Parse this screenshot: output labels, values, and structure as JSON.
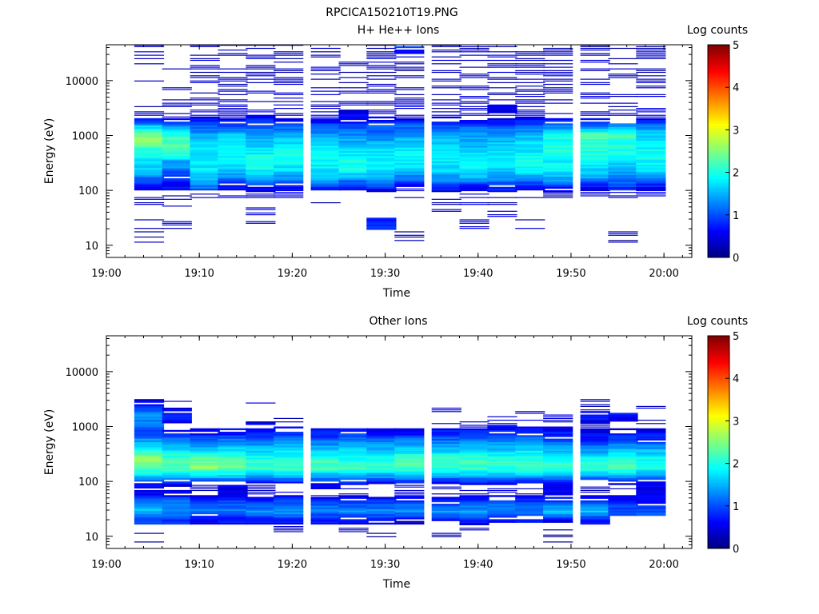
{
  "figure": {
    "title": "RPCICA150210T19.PNG"
  },
  "panels": [
    {
      "title": "H+ He++ Ions",
      "ylabel": "Energy (eV)",
      "xlabel": "Time",
      "colorbar_label": "Log counts"
    },
    {
      "title": "Other Ions",
      "ylabel": "Energy (eV)",
      "xlabel": "Time",
      "colorbar_label": "Log counts"
    }
  ],
  "chart_data": [
    {
      "type": "heatmap",
      "title": "H+ He++ Ions",
      "xlabel": "Time",
      "ylabel": "Energy (eV)",
      "x_ticks": [
        "19:00",
        "19:10",
        "19:20",
        "19:30",
        "19:40",
        "19:50",
        "20:00"
      ],
      "xlim": [
        "19:00",
        "20:03"
      ],
      "y_scale": "log",
      "y_ticks": [
        10,
        100,
        1000,
        10000
      ],
      "ylim": [
        6,
        45000
      ],
      "colorbar": {
        "label": "Log counts",
        "range": [
          0,
          5
        ],
        "ticks": [
          0,
          1,
          2,
          3,
          4,
          5
        ],
        "colormap": "jet"
      },
      "time_bins": [
        "19:03",
        "19:06",
        "19:09",
        "19:12",
        "19:15",
        "19:18",
        "19:22",
        "19:25",
        "19:28",
        "19:31",
        "19:35",
        "19:38",
        "19:41",
        "19:44",
        "19:47",
        "19:51",
        "19:54",
        "19:57"
      ],
      "profile": [
        {
          "energy": 13,
          "values": [
            0.2,
            0,
            0,
            0,
            0,
            0,
            0,
            0,
            0,
            0.2,
            0,
            0,
            0,
            0,
            0,
            0,
            0.2,
            0
          ]
        },
        {
          "energy": 25,
          "values": [
            0.4,
            0.4,
            0,
            0,
            0.4,
            0,
            0,
            0,
            0.8,
            0,
            0,
            0.4,
            0,
            0.4,
            0,
            0,
            0,
            0
          ]
        },
        {
          "energy": 38,
          "values": [
            0,
            0,
            0,
            0,
            0.4,
            0,
            0,
            0,
            0,
            0,
            0.3,
            0,
            0.4,
            0,
            0,
            0,
            0,
            0
          ]
        },
        {
          "energy": 55,
          "values": [
            0.4,
            0.3,
            0,
            0,
            0,
            0,
            0.3,
            0,
            0,
            0,
            0.3,
            0.4,
            0.3,
            0,
            0,
            0,
            0,
            0
          ]
        },
        {
          "energy": 80,
          "values": [
            0.3,
            0.3,
            0.3,
            0.4,
            0.3,
            0.4,
            0.3,
            0.4,
            0.3,
            0.4,
            0.3,
            0.4,
            0.3,
            0.4,
            0.3,
            0.4,
            0.3,
            0.4
          ]
        },
        {
          "energy": 110,
          "values": [
            0.6,
            0.6,
            1.2,
            0.6,
            0.8,
            0.6,
            0.9,
            0.6,
            0.8,
            0.5,
            0.8,
            0.6,
            0.9,
            0.6,
            0.8,
            0.6,
            0.9,
            0.6
          ]
        },
        {
          "energy": 160,
          "values": [
            1.2,
            0.8,
            1.5,
            1.2,
            1.4,
            1.3,
            1.5,
            1.4,
            1.5,
            1.2,
            1.4,
            1.5,
            1.3,
            1.4,
            1.5,
            1.4,
            1.2,
            1.3
          ]
        },
        {
          "energy": 230,
          "values": [
            1.6,
            1.2,
            1.8,
            1.6,
            1.9,
            1.7,
            1.8,
            1.9,
            1.8,
            1.6,
            1.7,
            1.8,
            1.6,
            1.9,
            1.8,
            1.7,
            1.5,
            1.8
          ]
        },
        {
          "energy": 330,
          "values": [
            1.7,
            1.5,
            1.9,
            1.8,
            2.0,
            1.9,
            1.9,
            2.0,
            1.9,
            1.8,
            1.8,
            1.9,
            1.8,
            2.0,
            1.9,
            1.9,
            1.8,
            1.9
          ]
        },
        {
          "energy": 480,
          "values": [
            2.0,
            2.2,
            1.8,
            2.0,
            1.8,
            1.9,
            1.9,
            1.8,
            1.8,
            1.9,
            1.8,
            1.7,
            1.8,
            1.8,
            2.0,
            2.0,
            2.0,
            1.9
          ]
        },
        {
          "energy": 700,
          "values": [
            2.4,
            2.2,
            1.7,
            1.9,
            1.6,
            1.7,
            1.6,
            1.5,
            1.5,
            1.6,
            1.6,
            1.5,
            1.6,
            1.7,
            2.0,
            2.1,
            2.0,
            1.8
          ]
        },
        {
          "energy": 1000,
          "values": [
            2.6,
            2.1,
            1.5,
            1.6,
            1.4,
            1.5,
            1.4,
            1.3,
            1.2,
            1.4,
            1.4,
            1.3,
            1.4,
            1.5,
            1.9,
            2.3,
            2.2,
            1.7
          ]
        },
        {
          "energy": 1450,
          "values": [
            1.6,
            1.3,
            1.0,
            1.0,
            1.0,
            1.0,
            1.0,
            0.9,
            1.0,
            1.1,
            1.0,
            1.1,
            1.0,
            1.1,
            1.2,
            1.2,
            1.4,
            1.2
          ]
        },
        {
          "energy": 2100,
          "values": [
            0.4,
            0.3,
            0.5,
            0.4,
            0.6,
            0.5,
            0.4,
            0.6,
            0.5,
            0.4,
            0.5,
            0.3,
            0.4,
            0.5,
            0.4,
            0.4,
            0.3,
            0.4
          ]
        },
        {
          "energy": 3000,
          "values": [
            0.3,
            0.3,
            0.4,
            0.4,
            0.4,
            0.4,
            0.4,
            0.5,
            0.3,
            0.5,
            0.4,
            0.4,
            0.6,
            0.4,
            0.4,
            0.3,
            0.4,
            0.4
          ]
        },
        {
          "energy": 4500,
          "values": [
            0,
            0.4,
            0.3,
            0.4,
            0.3,
            0.4,
            0.3,
            0.4,
            0.3,
            0.4,
            0.3,
            0.4,
            0.3,
            0.4,
            0.3,
            0.4,
            0.3,
            0.4
          ]
        },
        {
          "energy": 6500,
          "values": [
            0,
            0.3,
            0.4,
            0.3,
            0.4,
            0.3,
            0.4,
            0.3,
            0.4,
            0.3,
            0.4,
            0.3,
            0.4,
            0.3,
            0.4,
            0.3,
            0.4,
            0.3
          ]
        },
        {
          "energy": 9500,
          "values": [
            0.3,
            0.3,
            0.4,
            0.4,
            0.3,
            0.4,
            0.3,
            0.4,
            0.3,
            0.4,
            0.3,
            0.4,
            0.3,
            0.4,
            0.3,
            0.4,
            0.3,
            0.4
          ]
        },
        {
          "energy": 14000,
          "values": [
            0,
            0.3,
            0.3,
            0.4,
            0.3,
            0.3,
            0.4,
            0.3,
            0.4,
            0.3,
            0.4,
            0.3,
            0.4,
            0.3,
            0.4,
            0.3,
            0.4,
            0.3
          ]
        },
        {
          "energy": 20000,
          "values": [
            0.3,
            0,
            0.4,
            0.4,
            0.3,
            0.4,
            0.4,
            0.3,
            0.4,
            0.3,
            0.4,
            0.3,
            0.4,
            0.4,
            0.3,
            0.4,
            0.3,
            0.4
          ]
        },
        {
          "energy": 29000,
          "values": [
            0.3,
            0,
            0.3,
            0.3,
            0.4,
            0.3,
            0.3,
            0.4,
            0.3,
            0.4,
            0.3,
            0.3,
            0.4,
            0.3,
            0.4,
            0.3,
            0.4,
            0.3
          ]
        },
        {
          "energy": 40000,
          "values": [
            0.3,
            0,
            0.3,
            0.3,
            0.3,
            0.4,
            0.3,
            0.3,
            0.3,
            0.8,
            0.3,
            0.3,
            0.3,
            0.3,
            0.3,
            0.3,
            0.3,
            0.3
          ]
        }
      ]
    },
    {
      "type": "heatmap",
      "title": "Other Ions",
      "xlabel": "Time",
      "ylabel": "Energy (eV)",
      "x_ticks": [
        "19:00",
        "19:10",
        "19:20",
        "19:30",
        "19:40",
        "19:50",
        "20:00"
      ],
      "xlim": [
        "19:00",
        "20:03"
      ],
      "y_scale": "log",
      "y_ticks": [
        10,
        100,
        1000,
        10000
      ],
      "ylim": [
        6,
        45000
      ],
      "colorbar": {
        "label": "Log counts",
        "range": [
          0,
          5
        ],
        "ticks": [
          0,
          1,
          2,
          3,
          4,
          5
        ],
        "colormap": "jet"
      },
      "time_bins": [
        "19:03",
        "19:06",
        "19:09",
        "19:12",
        "19:15",
        "19:18",
        "19:22",
        "19:25",
        "19:28",
        "19:31",
        "19:35",
        "19:38",
        "19:41",
        "19:44",
        "19:47",
        "19:51",
        "19:54",
        "19:57"
      ],
      "profile": [
        {
          "energy": 9,
          "values": [
            0.2,
            0,
            0,
            0,
            0,
            0,
            0,
            0,
            0.2,
            0,
            0.2,
            0,
            0,
            0,
            0.2,
            0,
            0,
            0
          ]
        },
        {
          "energy": 13,
          "values": [
            0,
            0,
            0,
            0,
            0,
            0.3,
            0,
            0.3,
            0,
            0,
            0,
            0.3,
            0,
            0,
            0.2,
            0,
            0,
            0
          ]
        },
        {
          "energy": 19,
          "values": [
            1.0,
            0.8,
            0.6,
            0.7,
            0.6,
            0.7,
            0.6,
            0.7,
            0.6,
            0.5,
            0.6,
            0.7,
            0.6,
            0.7,
            0.6,
            0.7,
            0.0,
            0.0
          ]
        },
        {
          "energy": 27,
          "values": [
            1.6,
            1.4,
            1.2,
            1.2,
            1.3,
            1.4,
            1.3,
            1.4,
            1.3,
            1.3,
            1.4,
            1.4,
            1.3,
            1.3,
            1.7,
            1.6,
            1.1,
            1.0
          ]
        },
        {
          "energy": 40,
          "values": [
            1.3,
            1.2,
            1.0,
            1.0,
            0.9,
            1.0,
            1.0,
            0.9,
            1.0,
            1.0,
            0.9,
            1.0,
            1.1,
            1.0,
            1.0,
            0.9,
            0.8,
            0.6
          ]
        },
        {
          "energy": 58,
          "values": [
            0.6,
            0.5,
            0.4,
            0.5,
            0.4,
            0.4,
            0.3,
            0.4,
            0.3,
            0.4,
            0.3,
            0.4,
            0.3,
            0.4,
            0.5,
            0.4,
            0.4,
            0.5
          ]
        },
        {
          "energy": 85,
          "values": [
            0.6,
            0.5,
            0.5,
            0.6,
            0.5,
            0.5,
            0.6,
            0.5,
            0.4,
            0.5,
            0.4,
            0.5,
            0.5,
            0.4,
            0.5,
            0.4,
            0.5,
            0.5
          ]
        },
        {
          "energy": 120,
          "values": [
            1.6,
            1.5,
            1.6,
            1.6,
            1.4,
            1.5,
            1.4,
            1.5,
            1.4,
            1.5,
            1.4,
            1.5,
            1.4,
            1.5,
            1.4,
            1.4,
            1.5,
            1.4
          ]
        },
        {
          "energy": 170,
          "values": [
            2.3,
            2.3,
            2.6,
            2.4,
            2.2,
            2.2,
            2.2,
            2.2,
            2.1,
            2.2,
            2.1,
            2.2,
            2.1,
            2.2,
            2.2,
            2.1,
            2.2,
            2.0
          ]
        },
        {
          "energy": 250,
          "values": [
            2.7,
            2.2,
            2.3,
            2.4,
            2.0,
            2.0,
            2.1,
            2.0,
            2.0,
            2.2,
            2.1,
            2.1,
            2.1,
            2.1,
            2.0,
            2.0,
            2.1,
            1.9
          ]
        },
        {
          "energy": 360,
          "values": [
            2.0,
            1.8,
            1.6,
            1.7,
            1.6,
            1.7,
            1.6,
            1.7,
            1.6,
            1.7,
            1.6,
            1.7,
            1.6,
            1.7,
            1.5,
            1.4,
            1.6,
            1.5
          ]
        },
        {
          "energy": 520,
          "values": [
            1.4,
            1.3,
            1.2,
            1.3,
            1.2,
            1.3,
            1.2,
            1.3,
            1.2,
            1.3,
            1.2,
            1.3,
            1.3,
            1.3,
            1.1,
            0.8,
            1.0,
            0.9
          ]
        },
        {
          "energy": 750,
          "values": [
            1.0,
            0.6,
            0.5,
            0.6,
            0.8,
            0.8,
            0.7,
            0.8,
            0.6,
            0.6,
            0.8,
            0.8,
            0.8,
            0.8,
            0.7,
            0.6,
            0.7,
            0.6
          ]
        },
        {
          "energy": 1050,
          "values": [
            1.2,
            0.4,
            0,
            0,
            0.5,
            0.4,
            0,
            0.3,
            0,
            0,
            0.4,
            0.3,
            0.5,
            0.5,
            0.4,
            0.4,
            0.4,
            0.4
          ]
        },
        {
          "energy": 1500,
          "values": [
            1.3,
            0.8,
            0,
            0,
            0,
            0.3,
            0,
            0,
            0,
            0,
            0,
            0,
            0.3,
            0.4,
            0.4,
            0.8,
            0.7,
            0.4
          ]
        },
        {
          "energy": 2100,
          "values": [
            1.0,
            0.5,
            0,
            0,
            0,
            0,
            0,
            0,
            0,
            0,
            0.4,
            0,
            0,
            0.3,
            0.3,
            0.3,
            0,
            0.4
          ]
        },
        {
          "energy": 2600,
          "values": [
            0.5,
            0.4,
            0,
            0,
            0.4,
            0,
            0,
            0,
            0,
            0,
            0,
            0,
            0,
            0,
            0,
            0.3,
            0,
            0
          ]
        }
      ]
    }
  ]
}
